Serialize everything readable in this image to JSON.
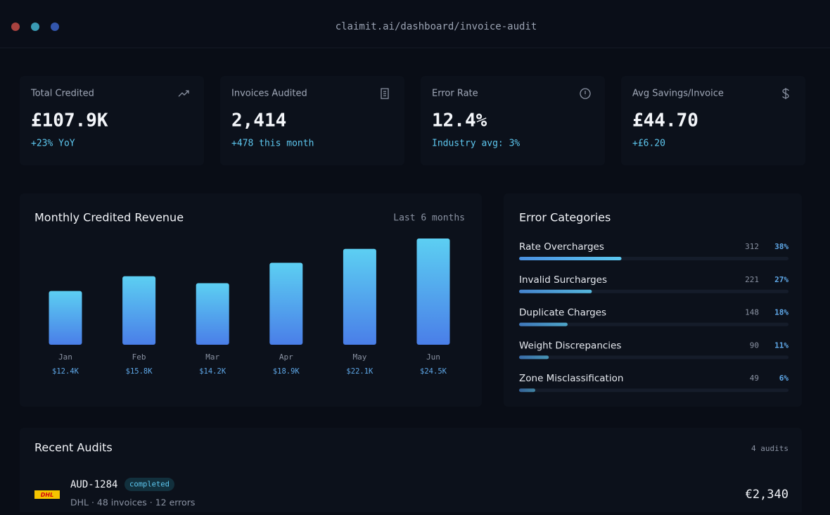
{
  "window": {
    "url": "claimit.ai/dashboard/invoice-audit"
  },
  "kpis": [
    {
      "label": "Total Credited",
      "value": "£107.9K",
      "delta": "+23% YoY"
    },
    {
      "label": "Invoices Audited",
      "value": "2,414",
      "delta": "+478 this month"
    },
    {
      "label": "Error Rate",
      "value": "12.4%",
      "delta": "Industry avg: 3%"
    },
    {
      "label": "Avg Savings/Invoice",
      "value": "£44.70",
      "delta": "+£6.20"
    }
  ],
  "chart_data": [
    {
      "type": "bar",
      "title": "Monthly Credited Revenue",
      "subtitle": "Last 6 months",
      "categories": [
        "Jan",
        "Feb",
        "Mar",
        "Apr",
        "May",
        "Jun"
      ],
      "values": [
        12400,
        15800,
        14200,
        18900,
        22100,
        24500
      ],
      "value_labels": [
        "$12.4K",
        "$15.8K",
        "$14.2K",
        "$18.9K",
        "$22.1K",
        "$24.5K"
      ],
      "color": [
        "#5ccff2",
        "#4a7ee8"
      ]
    },
    {
      "type": "hbar",
      "title": "Error Categories",
      "categories": [
        "Rate Overcharges",
        "Invalid Surcharges",
        "Duplicate Charges",
        "Weight Discrepancies",
        "Zone Misclassification"
      ],
      "counts": [
        312,
        221,
        148,
        90,
        49
      ],
      "values": [
        38,
        27,
        18,
        11,
        6
      ],
      "value_labels": [
        "38%",
        "27%",
        "18%",
        "11%",
        "6%"
      ],
      "color": [
        "#4a8fe0",
        "#5cc8f0"
      ]
    }
  ],
  "recent": {
    "title": "Recent Audits",
    "count": "4 audits",
    "rows": [
      {
        "logo": "DHL",
        "id": "AUD-1284",
        "status": "completed",
        "detail": "DHL · 48 invoices · 12 errors",
        "amount": "€2,340"
      }
    ]
  }
}
